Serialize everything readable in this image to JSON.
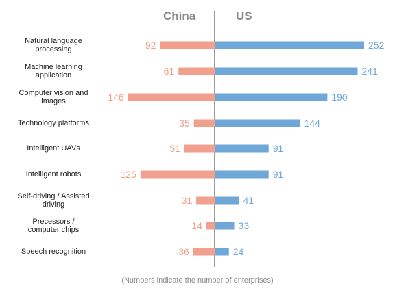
{
  "chart_data": {
    "type": "bar",
    "orientation": "horizontal-diverging",
    "categories": [
      "Natural language processing",
      "Machine learning application",
      "Computer vision and images",
      "Technology platforms",
      "Intelligent UAVs",
      "Intelligent robots",
      "Self-driving / Assisted driving",
      "Precessors / computer chips",
      "Speech recognition"
    ],
    "category_lines": [
      [
        "Natural language",
        "processing"
      ],
      [
        "Machine learning",
        "application"
      ],
      [
        "Computer vision and",
        "images"
      ],
      [
        "Technology platforms"
      ],
      [
        "Intelligent UAVs"
      ],
      [
        "Intelligent robots"
      ],
      [
        "Self-driving / Assisted",
        "driving"
      ],
      [
        "Precessors /",
        "computer chips"
      ],
      [
        "Speech recognition"
      ]
    ],
    "series": [
      {
        "name": "China",
        "values": [
          92,
          61,
          146,
          35,
          51,
          125,
          31,
          14,
          36
        ],
        "color": "#f0a08c",
        "side": "left"
      },
      {
        "name": "US",
        "values": [
          252,
          241,
          190,
          144,
          91,
          91,
          41,
          33,
          24
        ],
        "color": "#6fa7d8",
        "side": "right"
      }
    ],
    "axis_color": "#999999",
    "grid": false,
    "legend": "top headers",
    "note": "(Numbers indicate the number of enterprises)"
  }
}
